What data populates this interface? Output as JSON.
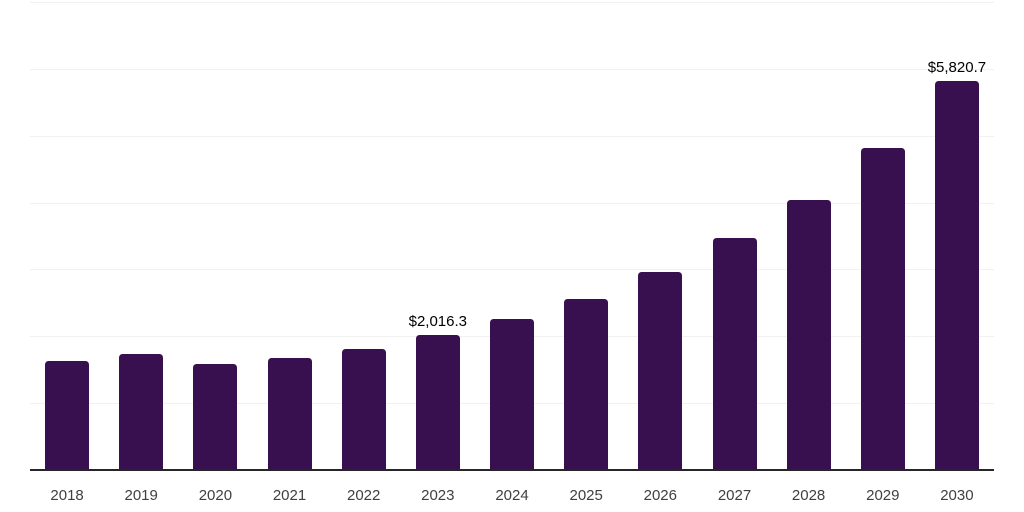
{
  "chart_data": {
    "type": "bar",
    "title": "",
    "xlabel": "",
    "ylabel": "",
    "categories": [
      "2018",
      "2019",
      "2020",
      "2021",
      "2022",
      "2023",
      "2024",
      "2025",
      "2026",
      "2027",
      "2028",
      "2029",
      "2030"
    ],
    "values": [
      1630,
      1730,
      1580,
      1670,
      1805,
      2016.3,
      2265,
      2565,
      2955,
      3465,
      4045,
      4820,
      5820.7
    ],
    "data_labels": {
      "2023": "$2,016.3",
      "2030": "$5,820.7"
    },
    "ylim": [
      0,
      7000
    ],
    "gridline_interval": 1000,
    "grid": true,
    "legend": false,
    "colors": {
      "bar": "#38104F",
      "gridline": "#F1F1F1",
      "axis": "#262626",
      "tick_label": "#404040",
      "data_label": "#000000",
      "background": "#FFFFFF"
    }
  }
}
